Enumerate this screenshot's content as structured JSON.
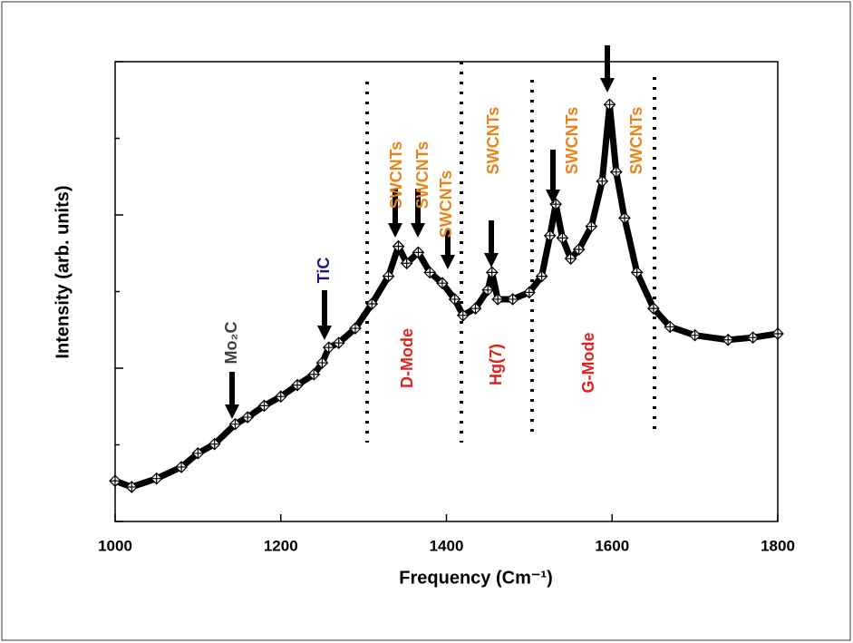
{
  "chart_data": {
    "type": "line",
    "x_label": "Frequency (Cm⁻¹)",
    "y_label": "Intensity (arb. units)",
    "color": "#000000",
    "x": [
      1000,
      1020,
      1050,
      1080,
      1100,
      1120,
      1145,
      1160,
      1180,
      1200,
      1220,
      1240,
      1250,
      1258,
      1270,
      1290,
      1310,
      1330,
      1342,
      1352,
      1366,
      1380,
      1395,
      1410,
      1420,
      1435,
      1450,
      1455,
      1462,
      1480,
      1500,
      1515,
      1525,
      1532,
      1540,
      1550,
      1560,
      1575,
      1588,
      1597,
      1605,
      1615,
      1630,
      1650,
      1670,
      1700,
      1740,
      1770,
      1800
    ],
    "series": [
      {
        "values": [
          0.53,
          0.45,
          0.56,
          0.71,
          0.89,
          1.01,
          1.27,
          1.36,
          1.51,
          1.63,
          1.78,
          1.92,
          2.07,
          2.27,
          2.33,
          2.52,
          2.84,
          3.2,
          3.59,
          3.37,
          3.51,
          3.25,
          3.11,
          2.9,
          2.69,
          2.78,
          3.02,
          3.25,
          2.9,
          2.9,
          2.99,
          3.2,
          3.73,
          4.14,
          3.7,
          3.43,
          3.55,
          3.85,
          4.44,
          5.44,
          4.56,
          3.96,
          3.25,
          2.78,
          2.54,
          2.43,
          2.37,
          2.4,
          2.45
        ]
      }
    ],
    "xlim": [
      1000,
      1800
    ],
    "xticks": [
      1000,
      1200,
      1400,
      1600,
      1800
    ],
    "ylim": [
      0,
      6
    ],
    "yticks": [
      0,
      1,
      2,
      3,
      4,
      5,
      6
    ],
    "annotations": [
      "Mo₂C",
      "TiC",
      "SWCNTs",
      "SWCNTs",
      "SWCNTs",
      "SWCNTs",
      "SWCNTs",
      "SWCNTs",
      "D-Mode",
      "Hg(7)",
      "G-Mode"
    ]
  }
}
